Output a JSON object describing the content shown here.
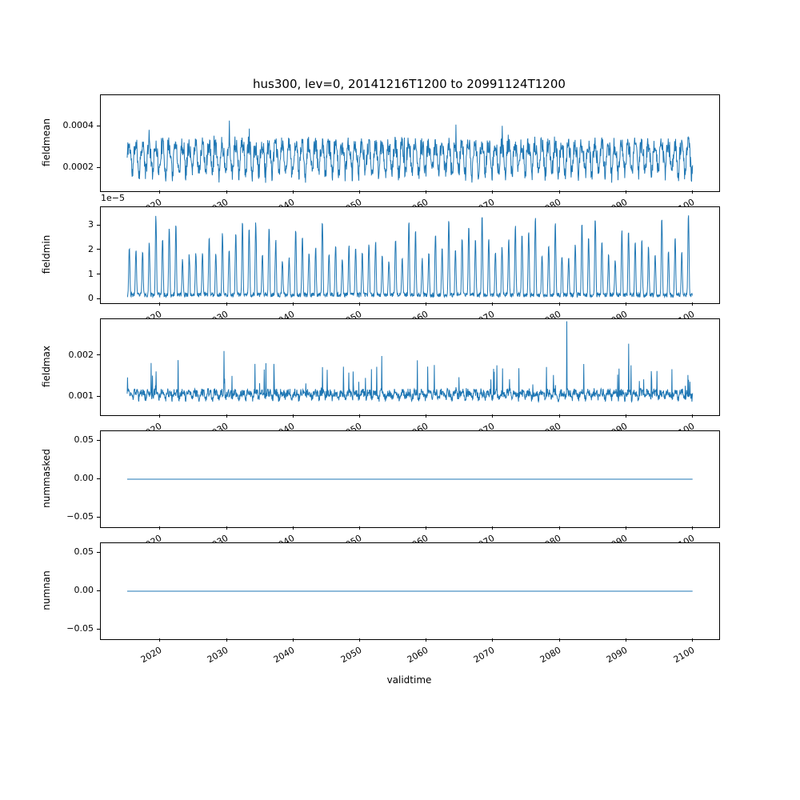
{
  "chart_data": {
    "type": "line",
    "title": "hus300, lev=0, 20141216T1200 to 20991124T1200",
    "xlabel": "validtime",
    "line_color": "#1f77b4",
    "grid": false,
    "legend": "none",
    "x_ticks": [
      "2020",
      "2030",
      "2040",
      "2050",
      "2060",
      "2070",
      "2080",
      "2090",
      "2100"
    ],
    "x_tick_values": [
      2020,
      2030,
      2040,
      2050,
      2060,
      2070,
      2080,
      2090,
      2100
    ],
    "xlim": [
      2011.0,
      2103.9
    ],
    "x_data_range": [
      2014.96,
      2099.9
    ],
    "subplots": [
      {
        "ylabel": "fieldmean",
        "ylim": [
          9e-05,
          0.00055
        ],
        "y_ticks": [
          "0.0002",
          "0.0004"
        ],
        "y_tick_values": [
          0.0002,
          0.0004
        ],
        "offset_label": "",
        "series": {
          "kind": "seasonal",
          "base": 0.000255,
          "annual_amp": 6.5e-05,
          "semi_amp": 1.5e-05,
          "noise": 4.5e-05,
          "spike_prob": 0.012,
          "spike_amp": 0.00013,
          "min": 0.00012,
          "max": 0.00054,
          "seed": 11
        }
      },
      {
        "ylabel": "fieldmin",
        "ylim": [
          -1.5e-06,
          3.75e-05
        ],
        "y_ticks": [
          "0",
          "1",
          "2",
          "3"
        ],
        "y_tick_values": [
          0,
          1e-05,
          2e-05,
          3e-05
        ],
        "offset_label": "1e−5",
        "series": {
          "kind": "peaks",
          "floor": 1e-06,
          "amp_min": 1.4e-05,
          "amp_max": 3.4e-05,
          "noise": 1.8e-06,
          "seed": 22
        }
      },
      {
        "ylabel": "fieldmax",
        "ylim": [
          0.00055,
          0.0029
        ],
        "y_ticks": [
          "0.001",
          "0.002"
        ],
        "y_tick_values": [
          0.001,
          0.002
        ],
        "offset_label": "",
        "series": {
          "kind": "seasonal",
          "base": 0.00106,
          "annual_amp": 6e-05,
          "semi_amp": 3e-05,
          "noise": 0.0001,
          "spike_prob": 0.04,
          "spike_amp": 0.0008,
          "min": 0.00088,
          "max": 0.00288,
          "seed": 33,
          "extra_spikes": [
            {
              "x": 2081.0,
              "y": 0.00285
            },
            {
              "x": 2090.3,
              "y": 0.0023
            },
            {
              "x": 2029.5,
              "y": 0.00212
            },
            {
              "x": 2053.2,
              "y": 0.002
            }
          ]
        }
      },
      {
        "ylabel": "nummasked",
        "ylim": [
          -0.0625,
          0.0625
        ],
        "y_ticks": [
          "−0.05",
          "0.00",
          "0.05"
        ],
        "y_tick_values": [
          -0.05,
          0,
          0.05
        ],
        "offset_label": "",
        "series": {
          "kind": "constant",
          "value": 0
        }
      },
      {
        "ylabel": "numnan",
        "ylim": [
          -0.0625,
          0.0625
        ],
        "y_ticks": [
          "−0.05",
          "0.00",
          "0.05"
        ],
        "y_tick_values": [
          -0.05,
          0,
          0.05
        ],
        "offset_label": "",
        "series": {
          "kind": "constant",
          "value": 0
        }
      }
    ]
  }
}
